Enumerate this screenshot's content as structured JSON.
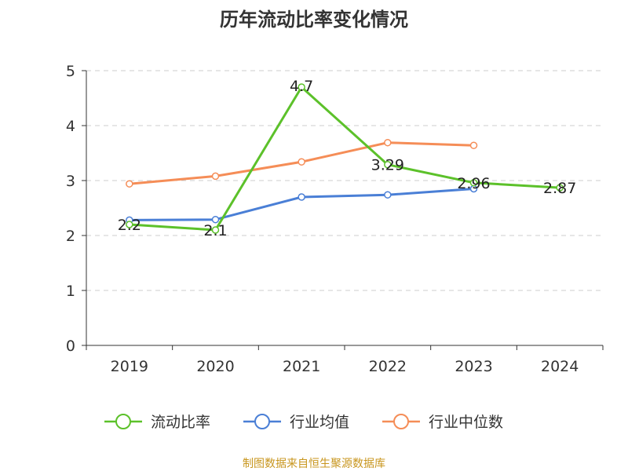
{
  "chart_data": {
    "type": "line",
    "title": "历年流动比率变化情况",
    "categories": [
      "2019",
      "2020",
      "2021",
      "2022",
      "2023",
      "2024"
    ],
    "ylim": [
      0,
      5
    ],
    "yticks": [
      "0",
      "1",
      "2",
      "3",
      "4",
      "5"
    ],
    "grid": true,
    "legend_position": "bottom",
    "series": [
      {
        "name": "流动比率",
        "color": "#5cc12a",
        "values": [
          2.2,
          2.1,
          4.7,
          3.29,
          2.96,
          2.87
        ],
        "labels": [
          "2.2",
          "2.1",
          "4.7",
          "3.29",
          "2.96",
          "2.87"
        ]
      },
      {
        "name": "行业均值",
        "color": "#4a7fd6",
        "values": [
          2.28,
          2.29,
          2.7,
          2.74,
          2.85,
          null
        ]
      },
      {
        "name": "行业中位数",
        "color": "#f58d57",
        "values": [
          2.94,
          3.08,
          3.34,
          3.69,
          3.64,
          null
        ]
      }
    ],
    "source": "制图数据来自恒生聚源数据库"
  }
}
